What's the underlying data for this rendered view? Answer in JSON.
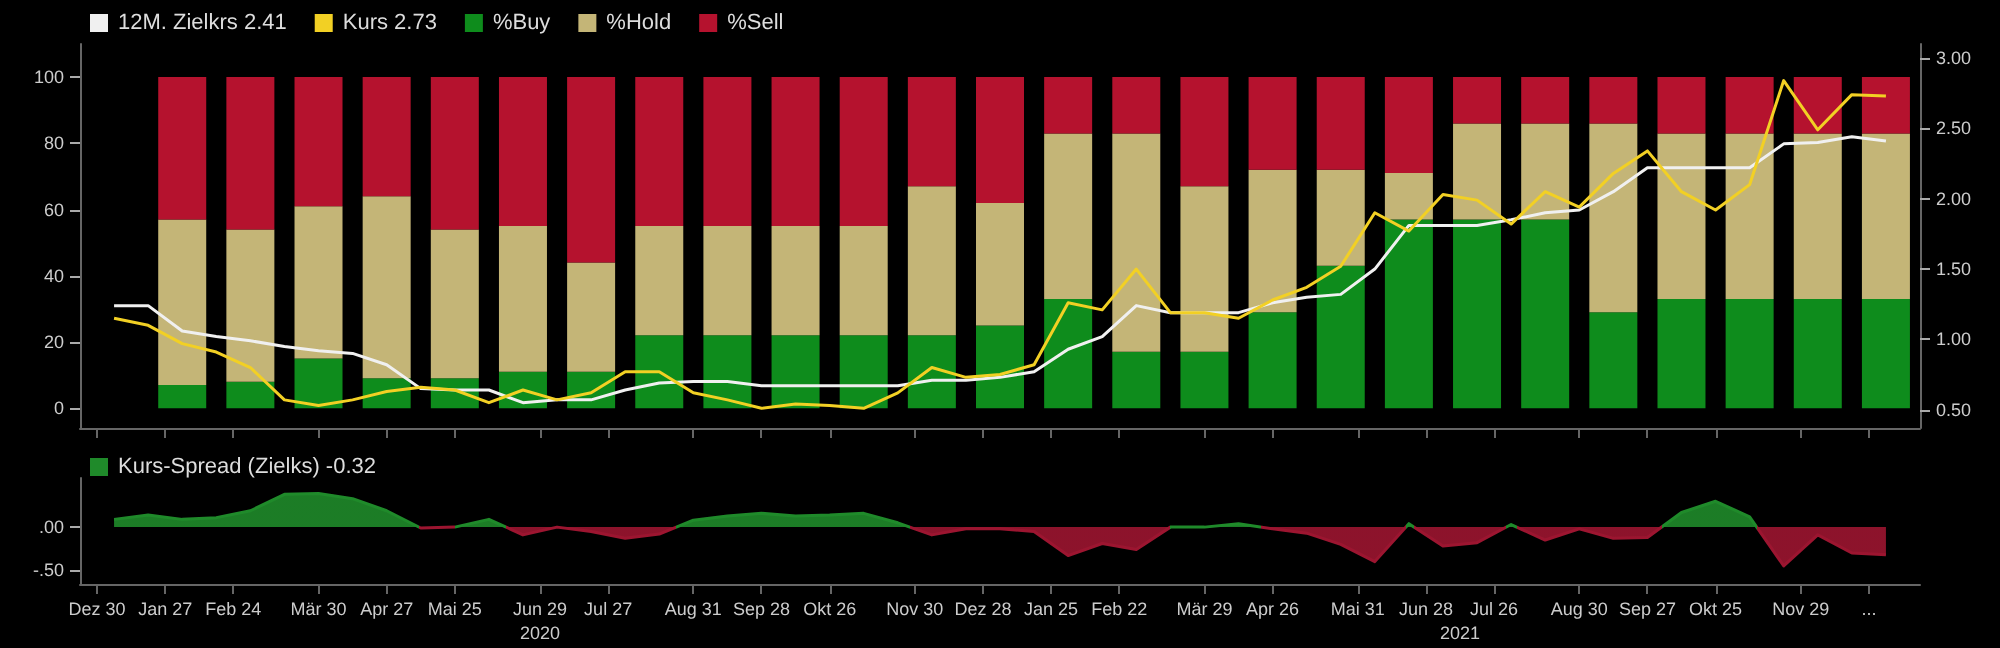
{
  "chart_data": [
    {
      "type": "bar",
      "stacked": true,
      "legend": "top left",
      "grid": false,
      "tick_labels": "y",
      "x": [
        "2020-02-03",
        "2020-03-02",
        "2020-03-30",
        "2020-04-27",
        "2020-05-25",
        "2020-06-22",
        "2020-07-20",
        "2020-08-17",
        "2020-09-14",
        "2020-10-12",
        "2020-11-09",
        "2020-12-07",
        "2021-01-04",
        "2021-02-01",
        "2021-03-01",
        "2021-03-29",
        "2021-04-26",
        "2021-05-24",
        "2021-06-21",
        "2021-07-19",
        "2021-08-16",
        "2021-09-13",
        "2021-10-11",
        "2021-11-08",
        "2021-12-06",
        "2022-01-03"
      ],
      "xlim": [
        "2019-12-23",
        "2022-01-17"
      ],
      "xticks": [
        {
          "value": "2019-12-30",
          "label": null
        },
        {
          "value": "2020-01-27",
          "label": null
        },
        {
          "value": "2020-02-24",
          "label": null
        },
        {
          "value": "2020-03-30",
          "label": null
        },
        {
          "value": "2020-04-27",
          "label": null
        },
        {
          "value": "2020-05-25",
          "label": null
        },
        {
          "value": "2020-06-29",
          "label": null
        },
        {
          "value": "2020-07-27",
          "label": null
        },
        {
          "value": "2020-08-31",
          "label": null
        },
        {
          "value": "2020-09-28",
          "label": null
        },
        {
          "value": "2020-10-26",
          "label": null
        },
        {
          "value": "2020-11-30",
          "label": null
        },
        {
          "value": "2020-12-28",
          "label": null
        },
        {
          "value": "2021-01-25",
          "label": null
        },
        {
          "value": "2021-02-22",
          "label": null
        },
        {
          "value": "2021-03-29",
          "label": null
        },
        {
          "value": "2021-04-26",
          "label": null
        },
        {
          "value": "2021-05-31",
          "label": null
        },
        {
          "value": "2021-06-28",
          "label": null
        },
        {
          "value": "2021-07-26",
          "label": null
        },
        {
          "value": "2021-08-30",
          "label": null
        },
        {
          "value": "2021-09-27",
          "label": null
        },
        {
          "value": "2021-10-25",
          "label": null
        },
        {
          "value": "2021-11-29",
          "label": null
        },
        {
          "value": "2021-12-27",
          "label": null
        }
      ],
      "ylim": [
        -6,
        110
      ],
      "yticks": [
        0,
        20,
        40,
        60,
        80,
        100
      ],
      "y2lim": [
        0.37,
        3.1
      ],
      "y2ticks": [
        {
          "value": 0.5,
          "label": "0.50"
        },
        {
          "value": 1,
          "label": "1.00"
        },
        {
          "value": 1.5,
          "label": "1.50"
        },
        {
          "value": 2,
          "label": "2.00"
        },
        {
          "value": 2.5,
          "label": "2.50"
        },
        {
          "value": 3,
          "label": "3.00"
        }
      ],
      "series": [
        {
          "name": "12M. Zielkrs 2.41",
          "type": "line",
          "axis": "y2",
          "color": "#f0f0f0",
          "x": [
            "2020-01-06",
            "2020-01-20",
            "2020-02-03",
            "2020-02-17",
            "2020-03-02",
            "2020-03-16",
            "2020-03-30",
            "2020-04-13",
            "2020-04-27",
            "2020-05-11",
            "2020-05-25",
            "2020-06-08",
            "2020-06-22",
            "2020-07-06",
            "2020-07-20",
            "2020-08-03",
            "2020-08-17",
            "2020-08-31",
            "2020-09-14",
            "2020-09-28",
            "2020-10-12",
            "2020-10-26",
            "2020-11-09",
            "2020-11-23",
            "2020-12-07",
            "2020-12-21",
            "2021-01-04",
            "2021-01-18",
            "2021-02-01",
            "2021-02-15",
            "2021-03-01",
            "2021-03-15",
            "2021-03-29",
            "2021-04-12",
            "2021-04-26",
            "2021-05-10",
            "2021-05-24",
            "2021-06-07",
            "2021-06-21",
            "2021-07-05",
            "2021-07-19",
            "2021-08-02",
            "2021-08-16",
            "2021-08-30",
            "2021-09-13",
            "2021-09-27",
            "2021-10-11",
            "2021-10-25",
            "2021-11-08",
            "2021-11-22",
            "2021-12-06",
            "2021-12-20",
            "2022-01-03"
          ],
          "values": [
            1.24,
            1.24,
            1.06,
            1.02,
            0.99,
            0.95,
            0.92,
            0.9,
            0.82,
            0.65,
            0.64,
            0.64,
            0.55,
            0.57,
            0.57,
            0.64,
            0.69,
            0.7,
            0.7,
            0.67,
            0.67,
            0.67,
            0.67,
            0.67,
            0.71,
            0.71,
            0.73,
            0.77,
            0.93,
            1.02,
            1.24,
            1.19,
            1.19,
            1.19,
            1.26,
            1.3,
            1.32,
            1.5,
            1.81,
            1.81,
            1.81,
            1.85,
            1.9,
            1.92,
            2.05,
            2.22,
            2.22,
            2.22,
            2.22,
            2.39,
            2.4,
            2.44,
            2.41
          ]
        },
        {
          "name": "Kurs 2.73",
          "type": "line",
          "axis": "y2",
          "color": "#f2d024",
          "x": [
            "2020-01-06",
            "2020-01-20",
            "2020-02-03",
            "2020-02-17",
            "2020-03-02",
            "2020-03-16",
            "2020-03-30",
            "2020-04-13",
            "2020-04-27",
            "2020-05-11",
            "2020-05-25",
            "2020-06-08",
            "2020-06-22",
            "2020-07-06",
            "2020-07-20",
            "2020-08-03",
            "2020-08-17",
            "2020-08-31",
            "2020-09-14",
            "2020-09-28",
            "2020-10-12",
            "2020-10-26",
            "2020-11-09",
            "2020-11-23",
            "2020-12-07",
            "2020-12-21",
            "2021-01-04",
            "2021-01-18",
            "2021-02-01",
            "2021-02-15",
            "2021-03-01",
            "2021-03-15",
            "2021-03-29",
            "2021-04-12",
            "2021-04-26",
            "2021-05-10",
            "2021-05-24",
            "2021-06-07",
            "2021-06-21",
            "2021-07-05",
            "2021-07-19",
            "2021-08-02",
            "2021-08-16",
            "2021-08-30",
            "2021-09-13",
            "2021-09-27",
            "2021-10-11",
            "2021-10-25",
            "2021-11-08",
            "2021-11-22",
            "2021-12-06",
            "2021-12-20",
            "2022-01-03"
          ],
          "values": [
            1.15,
            1.1,
            0.97,
            0.91,
            0.8,
            0.57,
            0.53,
            0.57,
            0.63,
            0.66,
            0.64,
            0.55,
            0.64,
            0.57,
            0.62,
            0.77,
            0.77,
            0.62,
            0.57,
            0.51,
            0.54,
            0.53,
            0.51,
            0.62,
            0.8,
            0.73,
            0.75,
            0.82,
            1.26,
            1.21,
            1.5,
            1.19,
            1.19,
            1.15,
            1.28,
            1.37,
            1.52,
            1.9,
            1.77,
            2.03,
            1.99,
            1.82,
            2.05,
            1.94,
            2.18,
            2.34,
            2.05,
            1.92,
            2.1,
            2.84,
            2.49,
            2.74,
            2.73
          ]
        },
        {
          "name": "%Buy",
          "color": "#0e8c1c",
          "values": [
            7,
            8,
            15,
            9,
            9,
            11,
            11,
            22,
            22,
            22,
            22,
            22,
            25,
            33,
            17,
            17,
            29,
            43,
            57,
            57,
            57,
            29,
            33,
            33,
            33,
            33
          ]
        },
        {
          "name": "%Hold",
          "color": "#c4b577",
          "values": [
            50,
            46,
            46,
            55,
            45,
            44,
            33,
            33,
            33,
            33,
            33,
            45,
            37,
            50,
            66,
            50,
            43,
            29,
            14,
            29,
            29,
            57,
            50,
            50,
            50,
            50
          ]
        },
        {
          "name": "%Sell",
          "color": "#b5122e",
          "values": [
            43,
            46,
            39,
            36,
            46,
            45,
            56,
            45,
            45,
            45,
            45,
            33,
            38,
            17,
            17,
            33,
            28,
            28,
            29,
            14,
            14,
            14,
            17,
            17,
            17,
            17
          ]
        }
      ]
    },
    {
      "type": "area",
      "legend": "top left",
      "grid": false,
      "x": [
        "2020-01-06",
        "2020-01-20",
        "2020-02-03",
        "2020-02-17",
        "2020-03-02",
        "2020-03-16",
        "2020-03-30",
        "2020-04-13",
        "2020-04-27",
        "2020-05-11",
        "2020-05-25",
        "2020-06-08",
        "2020-06-22",
        "2020-07-06",
        "2020-07-20",
        "2020-08-03",
        "2020-08-17",
        "2020-08-31",
        "2020-09-14",
        "2020-09-28",
        "2020-10-12",
        "2020-10-26",
        "2020-11-09",
        "2020-11-23",
        "2020-12-07",
        "2020-12-21",
        "2021-01-04",
        "2021-01-18",
        "2021-02-01",
        "2021-02-15",
        "2021-03-01",
        "2021-03-15",
        "2021-03-29",
        "2021-04-12",
        "2021-04-26",
        "2021-05-10",
        "2021-05-24",
        "2021-06-07",
        "2021-06-21",
        "2021-07-05",
        "2021-07-19",
        "2021-08-02",
        "2021-08-16",
        "2021-08-30",
        "2021-09-13",
        "2021-09-27",
        "2021-10-11",
        "2021-10-25",
        "2021-11-08",
        "2021-11-22",
        "2021-12-06",
        "2021-12-20",
        "2022-01-03"
      ],
      "xlim": [
        "2019-12-23",
        "2022-01-17"
      ],
      "xticks": [
        {
          "value": "2019-12-30",
          "label": "Dez 30"
        },
        {
          "value": "2020-01-27",
          "label": "Jan 27"
        },
        {
          "value": "2020-02-24",
          "label": "Feb 24"
        },
        {
          "value": "2020-03-30",
          "label": "Mär 30"
        },
        {
          "value": "2020-04-27",
          "label": "Apr 27"
        },
        {
          "value": "2020-05-25",
          "label": "Mai 25"
        },
        {
          "value": "2020-06-29",
          "label": "Jun 29"
        },
        {
          "value": "2020-07-27",
          "label": "Jul 27"
        },
        {
          "value": "2020-08-31",
          "label": "Aug 31"
        },
        {
          "value": "2020-09-28",
          "label": "Sep 28"
        },
        {
          "value": "2020-10-26",
          "label": "Okt 26"
        },
        {
          "value": "2020-11-30",
          "label": "Nov 30"
        },
        {
          "value": "2020-12-28",
          "label": "Dez 28"
        },
        {
          "value": "2021-01-25",
          "label": "Jan 25"
        },
        {
          "value": "2021-02-22",
          "label": "Feb 22"
        },
        {
          "value": "2021-03-29",
          "label": "Mär 29"
        },
        {
          "value": "2021-04-26",
          "label": "Apr 26"
        },
        {
          "value": "2021-05-31",
          "label": "Mai 31"
        },
        {
          "value": "2021-06-28",
          "label": "Jun 28"
        },
        {
          "value": "2021-07-26",
          "label": "Jul 26"
        },
        {
          "value": "2021-08-30",
          "label": "Aug 30"
        },
        {
          "value": "2021-09-27",
          "label": "Sep 27"
        },
        {
          "value": "2021-10-25",
          "label": "Okt 25"
        },
        {
          "value": "2021-11-29",
          "label": "Nov 29"
        },
        {
          "value": "2021-12-27",
          "label": "..."
        }
      ],
      "ylim": [
        -0.66,
        0.57
      ],
      "yticks": [
        {
          "value": -0.5,
          "label": "-.50"
        },
        {
          "value": 0,
          "label": ".00"
        }
      ],
      "annotations": [
        "2020",
        "2021"
      ],
      "series": [
        {
          "name": "Kurs-Spread (Zielks) -0.32",
          "color": "#1f8a2a",
          "colors": [
            "#1f8a2a",
            "#1f8a2a",
            "#1f8a2a",
            "#1f8a2a",
            "#1f8a2a",
            "#1f8a2a",
            "#1f8a2a",
            "#1f8a2a",
            "#1f8a2a",
            "#9c1530",
            "#1f8a2a",
            "#1f8a2a",
            "#9c1530",
            "#1f8a2a",
            "#9c1530",
            "#9c1530",
            "#9c1530",
            "#1f8a2a",
            "#1f8a2a",
            "#1f8a2a",
            "#1f8a2a",
            "#1f8a2a",
            "#1f8a2a",
            "#1f8a2a",
            "#9c1530",
            "#9c1530",
            "#9c1530",
            "#9c1530",
            "#9c1530",
            "#9c1530",
            "#9c1530",
            "#1f8a2a",
            "#1f8a2a",
            "#1f8a2a",
            "#9c1530",
            "#9c1530",
            "#9c1530",
            "#9c1530",
            "#1f8a2a",
            "#9c1530",
            "#9c1530",
            "#1f8a2a",
            "#9c1530",
            "#9c1530",
            "#9c1530",
            "#9c1530",
            "#1f8a2a",
            "#1f8a2a",
            "#1f8a2a",
            "#9c1530",
            "#9c1530",
            "#9c1530",
            "#9c1530"
          ],
          "values": [
            0.09,
            0.14,
            0.09,
            0.11,
            0.19,
            0.38,
            0.39,
            0.33,
            0.19,
            -0.01,
            0.0,
            0.09,
            -0.09,
            0.0,
            -0.05,
            -0.13,
            -0.08,
            0.08,
            0.13,
            0.16,
            0.13,
            0.14,
            0.16,
            0.05,
            -0.09,
            -0.02,
            -0.02,
            -0.05,
            -0.33,
            -0.19,
            -0.26,
            0.0,
            0.0,
            0.04,
            -0.02,
            -0.07,
            -0.2,
            -0.4,
            0.04,
            -0.22,
            -0.18,
            0.03,
            -0.15,
            -0.02,
            -0.13,
            -0.12,
            0.17,
            0.3,
            0.12,
            -0.45,
            -0.09,
            -0.3,
            -0.32
          ]
        }
      ]
    }
  ]
}
